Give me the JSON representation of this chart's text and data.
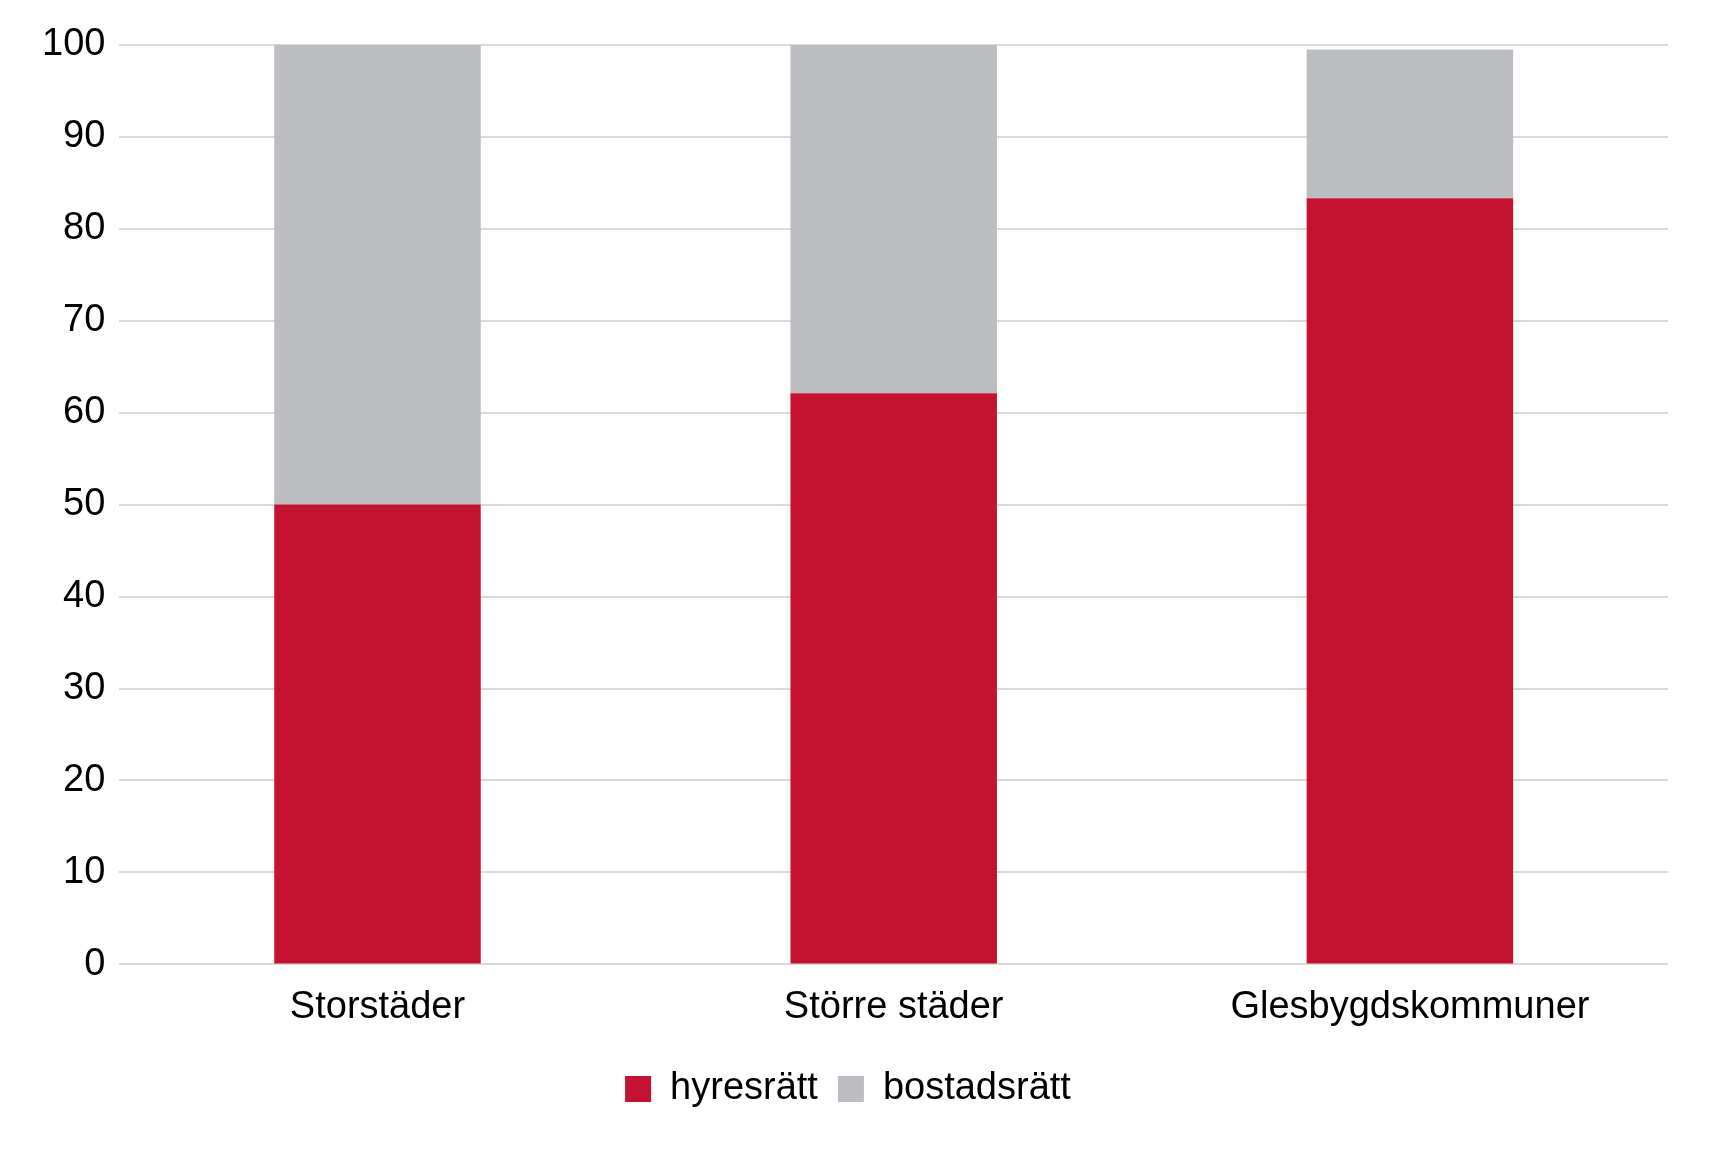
{
  "chart_data": {
    "type": "bar",
    "stacked": true,
    "categories": [
      "Storstäder",
      "Större städer",
      "Glesbygdskommuner"
    ],
    "series": [
      {
        "name": "hyresrätt",
        "color": "#c41230",
        "values": [
          50,
          62.1,
          83.3
        ]
      },
      {
        "name": "bostadsrätt",
        "color": "#bcbdc0",
        "values": [
          50,
          37.9,
          16.2
        ]
      }
    ],
    "ylim": [
      0,
      100
    ],
    "yticks": [
      0,
      10,
      20,
      30,
      40,
      50,
      60,
      70,
      80,
      90,
      100
    ],
    "grid": "y",
    "legend": "bottom"
  }
}
